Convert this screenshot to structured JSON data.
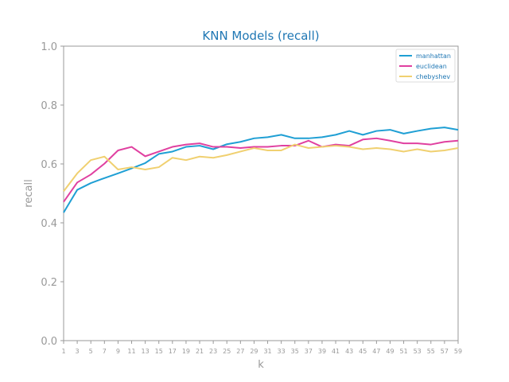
{
  "colors": {
    "title": "#1f77b4",
    "manhattan": "#1f9fd4",
    "euclidean": "#e040a0",
    "chebyshev": "#f0d070",
    "axis": "#999999"
  },
  "chart_data": {
    "type": "line",
    "title": "KNN Models (recall)",
    "xlabel": "k",
    "ylabel": "recall",
    "ylim": [
      0.0,
      1.0
    ],
    "xlim": [
      1,
      59
    ],
    "x": [
      1,
      3,
      5,
      7,
      9,
      11,
      13,
      15,
      17,
      19,
      21,
      23,
      25,
      27,
      29,
      31,
      33,
      35,
      37,
      39,
      41,
      43,
      45,
      47,
      49,
      51,
      53,
      55,
      57,
      59
    ],
    "x_tick_labels": [
      "1",
      "3",
      "5",
      "7",
      "9",
      "11",
      "13",
      "15",
      "17",
      "19",
      "21",
      "23",
      "25",
      "27",
      "29",
      "31",
      "33",
      "35",
      "37",
      "39",
      "41",
      "43",
      "45",
      "47",
      "49",
      "51",
      "53",
      "55",
      "57",
      "59"
    ],
    "y_tick_labels": [
      "0.0",
      "0.2",
      "0.4",
      "0.6",
      "0.8",
      "1.0"
    ],
    "y_ticks": [
      0.0,
      0.2,
      0.4,
      0.6,
      0.8,
      1.0
    ],
    "grid": false,
    "legend_position": "top-right",
    "series": [
      {
        "name": "manhattan",
        "color_key": "manhattan",
        "values": [
          0.435,
          0.512,
          0.535,
          0.552,
          0.568,
          0.585,
          0.603,
          0.634,
          0.642,
          0.658,
          0.662,
          0.65,
          0.667,
          0.675,
          0.687,
          0.691,
          0.699,
          0.687,
          0.687,
          0.691,
          0.699,
          0.712,
          0.699,
          0.712,
          0.716,
          0.703,
          0.712,
          0.72,
          0.724,
          0.716
        ]
      },
      {
        "name": "euclidean",
        "color_key": "euclidean",
        "values": [
          0.471,
          0.537,
          0.564,
          0.601,
          0.646,
          0.658,
          0.626,
          0.642,
          0.658,
          0.666,
          0.67,
          0.658,
          0.658,
          0.654,
          0.658,
          0.658,
          0.662,
          0.662,
          0.679,
          0.658,
          0.666,
          0.662,
          0.683,
          0.687,
          0.679,
          0.67,
          0.67,
          0.666,
          0.675,
          0.679
        ]
      },
      {
        "name": "chebyshev",
        "color_key": "chebyshev",
        "values": [
          0.507,
          0.568,
          0.613,
          0.625,
          0.581,
          0.589,
          0.581,
          0.589,
          0.621,
          0.613,
          0.625,
          0.621,
          0.63,
          0.642,
          0.654,
          0.646,
          0.646,
          0.666,
          0.654,
          0.658,
          0.662,
          0.658,
          0.65,
          0.654,
          0.65,
          0.642,
          0.65,
          0.642,
          0.646,
          0.654
        ]
      }
    ]
  }
}
